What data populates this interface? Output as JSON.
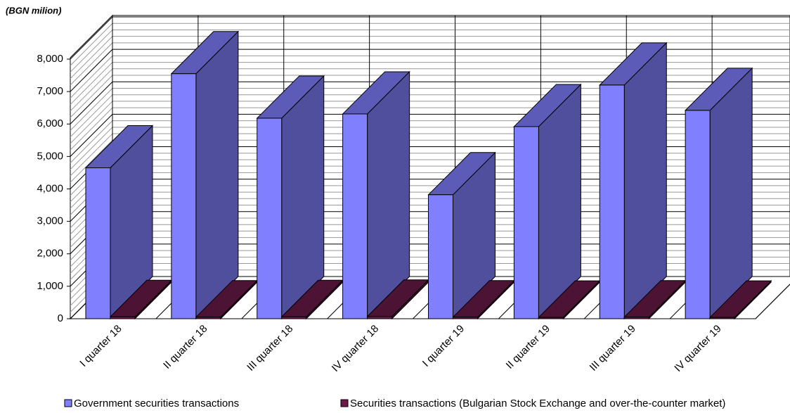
{
  "chart_data": {
    "type": "bar3d",
    "subtitle": "(BGN milion)",
    "categories": [
      "I quarter 18",
      "II quarter 18",
      "III quarter 18",
      "IV quarter 18",
      "I quarter 19",
      "II quarter 19",
      "III quarter 19",
      "IV quarter 19"
    ],
    "series": [
      {
        "name": "Government securities transactions",
        "color": "#8080ff",
        "values": [
          4650,
          7550,
          6180,
          6310,
          3820,
          5920,
          7200,
          6420
        ]
      },
      {
        "name": "Securities transactions (Bulgarian Stock Exchange and over-the-counter market)",
        "color": "#6b1a4a",
        "values": [
          60,
          50,
          60,
          70,
          50,
          40,
          50,
          40
        ]
      }
    ],
    "ylim": [
      0,
      8000
    ],
    "yticks": [
      0,
      {
        "value": 1000,
        "label": "1,000"
      },
      {
        "value": 2000,
        "label": "2,000"
      },
      {
        "value": 3000,
        "label": "3,000"
      },
      {
        "value": 4000,
        "label": "4,000"
      },
      {
        "value": 5000,
        "label": "5,000"
      },
      {
        "value": 6000,
        "label": "6,000"
      },
      {
        "value": 7000,
        "label": "7,000"
      },
      {
        "value": 8000,
        "label": "8,000"
      }
    ],
    "grid": true
  }
}
